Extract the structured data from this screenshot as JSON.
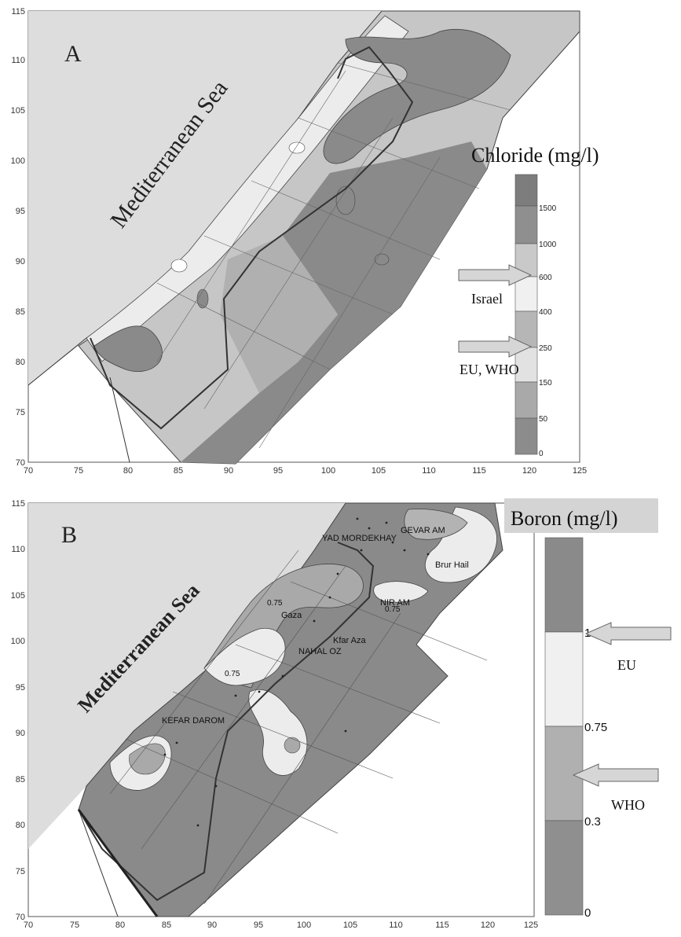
{
  "panelA": {
    "letter": "A",
    "sea_label": "Mediterranean Sea",
    "x_ticks": [
      "70",
      "75",
      "80",
      "85",
      "90",
      "95",
      "100",
      "105",
      "110",
      "115",
      "120",
      "125"
    ],
    "y_ticks": [
      "70",
      "75",
      "80",
      "85",
      "90",
      "95",
      "100",
      "105",
      "110",
      "115"
    ],
    "legend": {
      "title": "Chloride (mg/l)",
      "ticks": [
        "1500",
        "1000",
        "600",
        "400",
        "250",
        "150",
        "50",
        "0"
      ],
      "arrows": [
        {
          "label": "Israel"
        },
        {
          "label": "EU, WHO"
        }
      ]
    }
  },
  "panelB": {
    "letter": "B",
    "sea_label": "Mediterranean Sea",
    "x_ticks": [
      "70",
      "75",
      "80",
      "85",
      "90",
      "95",
      "100",
      "105",
      "110",
      "115",
      "120",
      "125"
    ],
    "y_ticks": [
      "70",
      "75",
      "80",
      "85",
      "90",
      "95",
      "100",
      "105",
      "110",
      "115"
    ],
    "places": [
      "YAD MORDEKHAY",
      "GEVAR AM",
      "Brur Hail",
      "NIR AM",
      "Gaza",
      "Kfar Aza",
      "NAHAL OZ",
      "KEFAR DAROM"
    ],
    "contour_labels": [
      "0.75",
      "0.75",
      "0.75"
    ],
    "legend": {
      "title": "Boron (mg/l)",
      "ticks": [
        "1",
        "0.75",
        "0.3",
        "0"
      ],
      "arrows": [
        {
          "label": "EU"
        },
        {
          "label": "WHO"
        }
      ]
    }
  },
  "colors": {
    "sea": "#dddddd",
    "land_dark": "#8a8a8a",
    "land_mid": "#a9a9a9",
    "land_light": "#c6c6c6",
    "land_pale": "#ececec",
    "legend_title_bg_B": "#d4d4d4"
  }
}
